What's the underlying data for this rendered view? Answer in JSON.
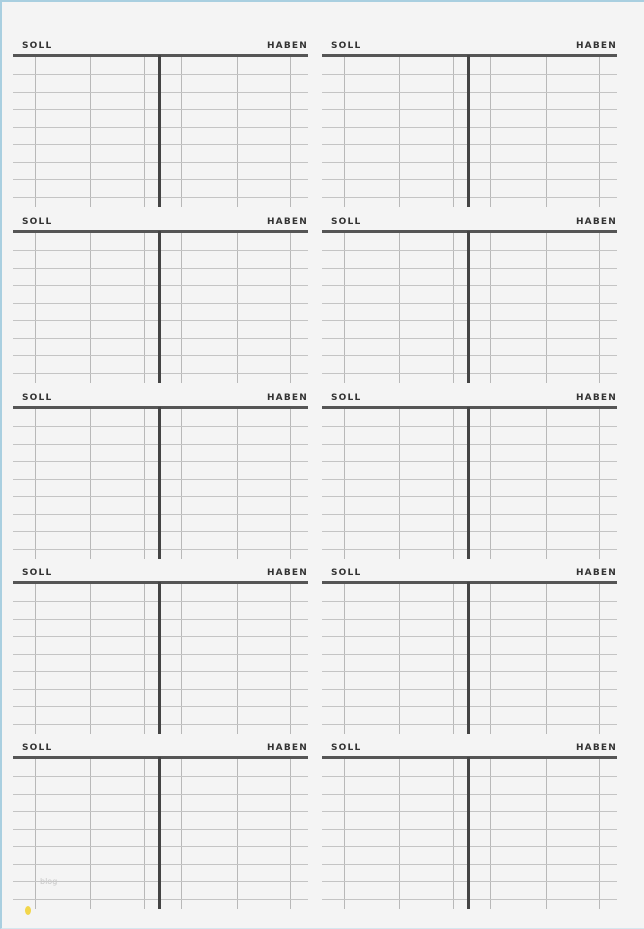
{
  "accounts": [
    {
      "soll": "SOLL",
      "haben": "HABEN"
    },
    {
      "soll": "SOLL",
      "haben": "HABEN"
    },
    {
      "soll": "SOLL",
      "haben": "HABEN"
    },
    {
      "soll": "SOLL",
      "haben": "HABEN"
    },
    {
      "soll": "SOLL",
      "haben": "HABEN"
    },
    {
      "soll": "SOLL",
      "haben": "HABEN"
    },
    {
      "soll": "SOLL",
      "haben": "HABEN"
    },
    {
      "soll": "SOLL",
      "haben": "HABEN"
    },
    {
      "soll": "SOLL",
      "haben": "HABEN"
    },
    {
      "soll": "SOLL",
      "haben": "HABEN"
    }
  ],
  "watermark": "blog"
}
